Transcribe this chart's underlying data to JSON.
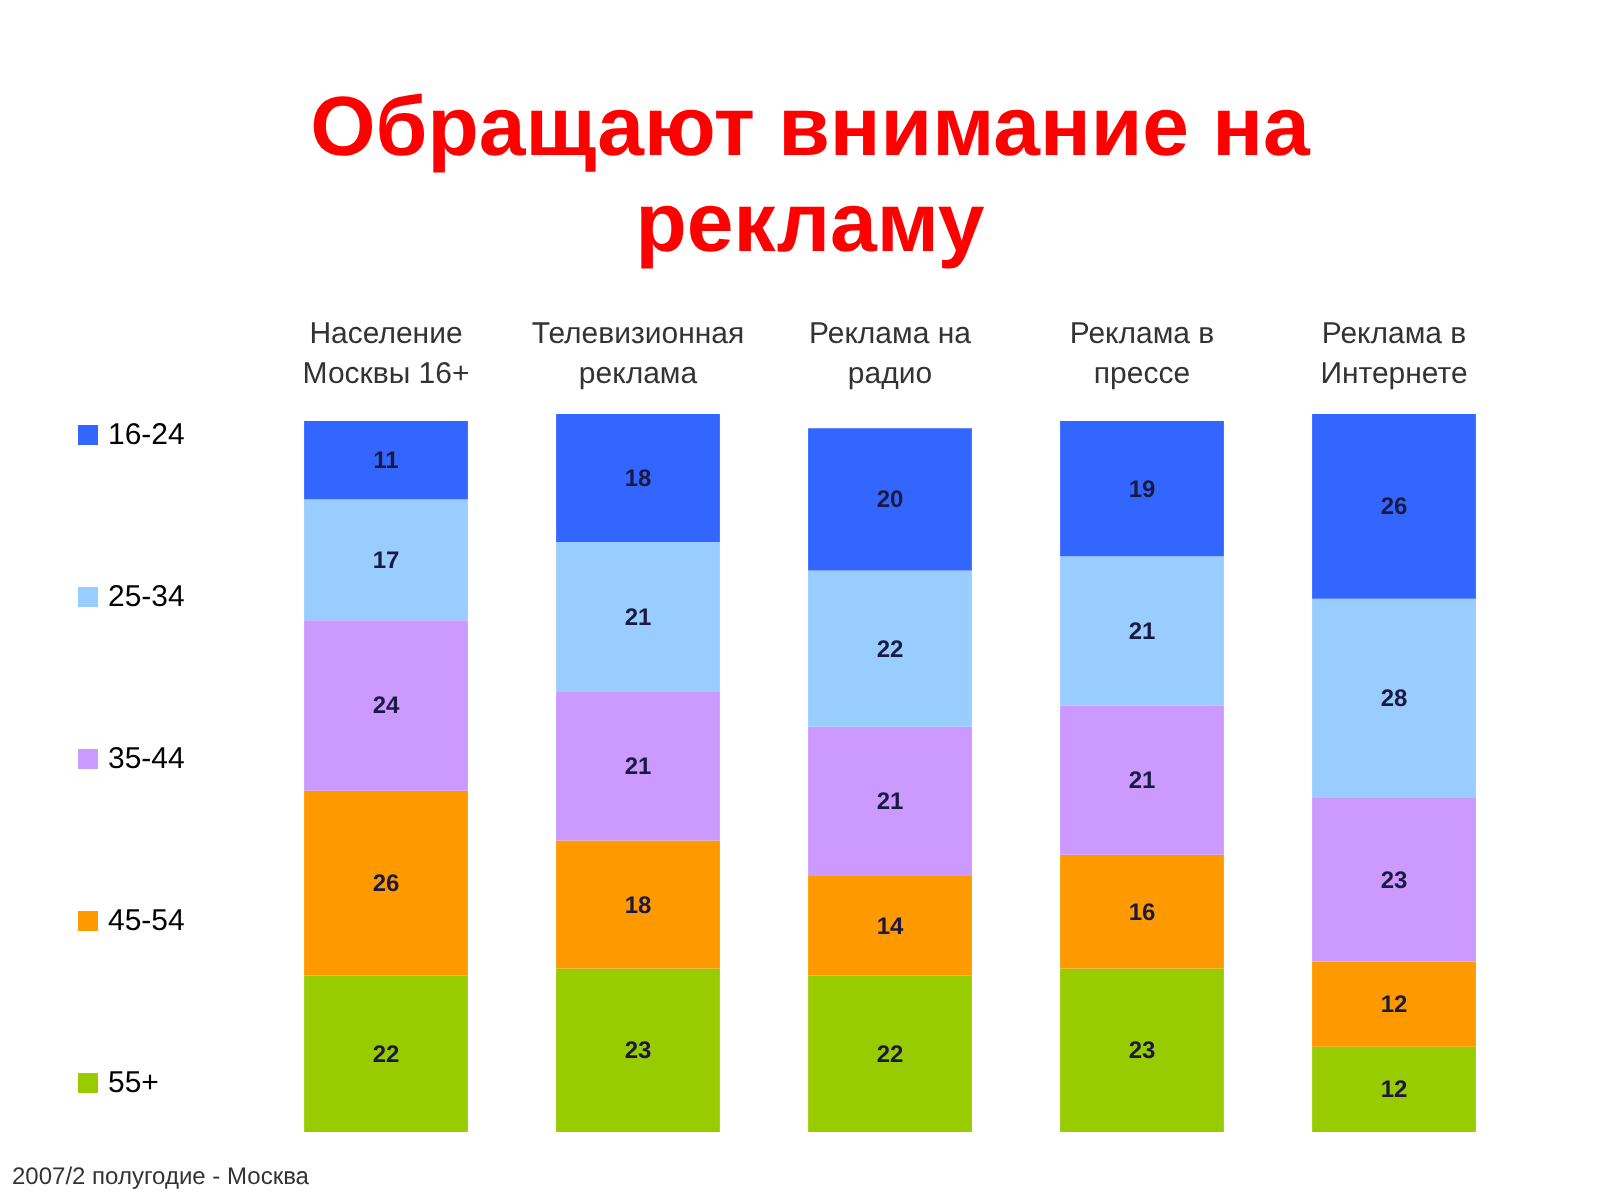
{
  "chart_data": {
    "type": "bar",
    "title": "Обращают внимание на рекламу",
    "categories": [
      "Население Москвы 16+",
      "Телевизионная реклама",
      "Реклама на радио",
      "Реклама в прессе",
      "Реклама в Интернете"
    ],
    "series": [
      {
        "name": "55+",
        "color": "#99cc00",
        "values": [
          22,
          23,
          22,
          23,
          12
        ]
      },
      {
        "name": "45-54",
        "color": "#ff9900",
        "values": [
          26,
          18,
          14,
          16,
          12
        ]
      },
      {
        "name": "35-44",
        "color": "#cc99ff",
        "values": [
          24,
          21,
          21,
          21,
          23
        ]
      },
      {
        "name": "25-34",
        "color": "#99ccff",
        "values": [
          17,
          21,
          22,
          21,
          28
        ]
      },
      {
        "name": "16-24",
        "color": "#3366ff",
        "values": [
          11,
          18,
          20,
          19,
          26
        ]
      }
    ],
    "stacked": true,
    "data_labels": true,
    "legend": "left",
    "tick_labels": "x",
    "annotations": [
      "2007/2 полугодие - Москва"
    ]
  }
}
